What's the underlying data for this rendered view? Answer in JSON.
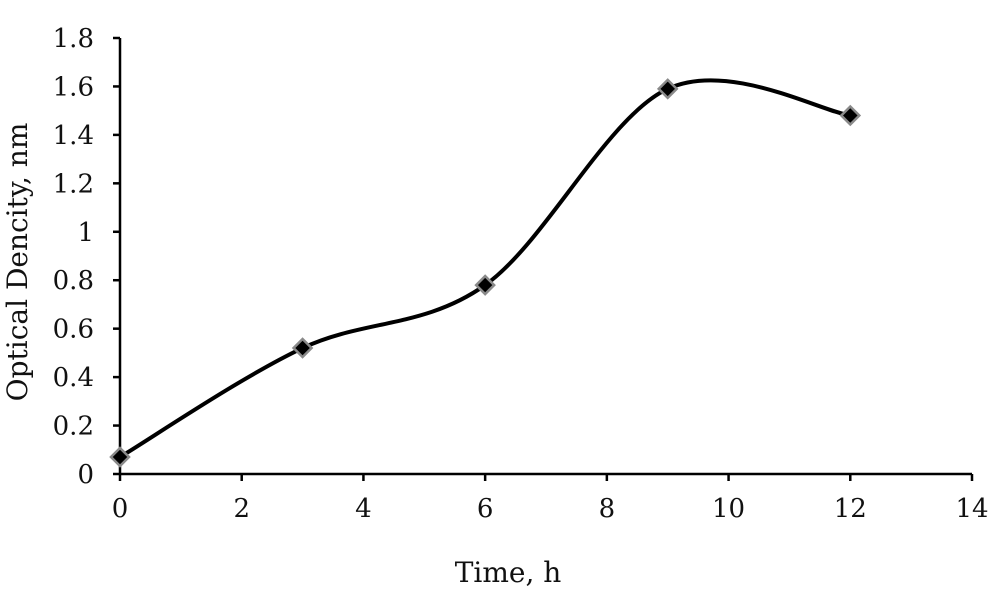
{
  "chart_data": {
    "type": "line",
    "title": "",
    "xlabel": "Time, h",
    "ylabel": "Optical Dencity, nm",
    "xlim": [
      0,
      14
    ],
    "ylim": [
      0,
      1.8
    ],
    "xticks": [
      "0",
      "2",
      "4",
      "6",
      "8",
      "10",
      "12",
      "14"
    ],
    "yticks": [
      "0",
      "0.2",
      "0.4",
      "0.6",
      "0.8",
      "1",
      "1.2",
      "1.4",
      "1.6",
      "1.8"
    ],
    "smooth": true,
    "grid": false,
    "legend": "none",
    "series": [
      {
        "x": [
          0,
          3,
          6,
          9,
          12
        ],
        "y": [
          0.07,
          0.52,
          0.78,
          1.59,
          1.48
        ],
        "marker": "diamond",
        "line_color": "#000000",
        "marker_color": "#000000",
        "marker_edge_color": "#8a8a8a"
      }
    ]
  }
}
